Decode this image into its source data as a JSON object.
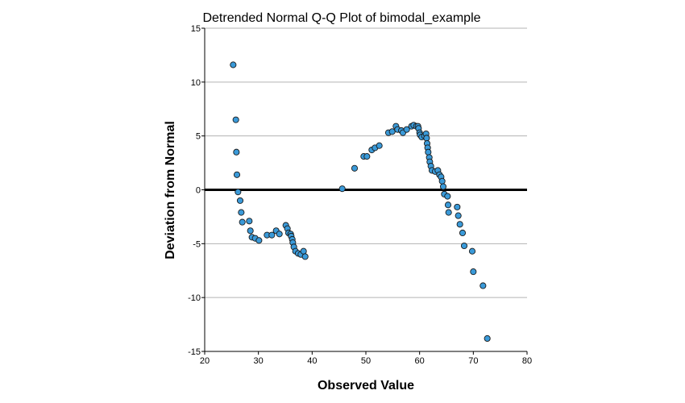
{
  "chart_data": {
    "type": "scatter",
    "title": "Detrended Normal Q-Q Plot of bimodal_example",
    "xlabel": "Observed Value",
    "ylabel": "Deviation from Normal",
    "xlim": [
      20,
      80
    ],
    "ylim": [
      -15,
      15
    ],
    "x_ticks": [
      "20",
      "30",
      "40",
      "50",
      "60",
      "70",
      "80"
    ],
    "y_ticks": [
      "15",
      "10",
      "5",
      "0",
      "-5",
      "-10",
      "-15"
    ],
    "grid": "horizontal",
    "reference_line_y": 0,
    "legend": "none",
    "colors": {
      "marker_fill": "#3a9ad9",
      "marker_edge": "#1a1a1a",
      "gridline": "#b3b3b3",
      "axis": "#000000",
      "reference_line": "#000000"
    },
    "series": [
      {
        "x": [
          25.3,
          25.8,
          25.9,
          26.0,
          26.2,
          26.6,
          26.8,
          27.0,
          28.3,
          28.5,
          28.8,
          29.4,
          30.1,
          31.6,
          32.5,
          33.3,
          33.9,
          35.1,
          35.4,
          35.6,
          36.0,
          36.1,
          36.3,
          36.4,
          36.6,
          36.9,
          37.4,
          37.9,
          38.4,
          38.7,
          45.6,
          47.9,
          49.6,
          50.2,
          51.1,
          51.7,
          52.5,
          54.2,
          54.9,
          55.6,
          55.9,
          56.6,
          56.9,
          57.6,
          58.5,
          58.9,
          59.4,
          59.7,
          59.8,
          60.0,
          60.1,
          60.4,
          60.9,
          61.2,
          61.3,
          61.4,
          61.5,
          61.6,
          61.8,
          61.9,
          62.1,
          62.3,
          62.9,
          63.4,
          63.7,
          64.0,
          64.2,
          64.4,
          64.6,
          65.2,
          65.3,
          65.4,
          67.0,
          67.2,
          67.5,
          68.0,
          68.3,
          69.8,
          70.0,
          71.8,
          72.6
        ],
        "y": [
          11.6,
          6.5,
          3.5,
          1.4,
          -0.2,
          -1.0,
          -2.1,
          -3.0,
          -2.9,
          -3.8,
          -4.4,
          -4.5,
          -4.7,
          -4.2,
          -4.2,
          -3.8,
          -4.1,
          -3.3,
          -3.6,
          -4.0,
          -4.1,
          -4.3,
          -4.6,
          -4.9,
          -5.3,
          -5.7,
          -5.9,
          -6.0,
          -5.7,
          -6.2,
          0.1,
          2.0,
          3.1,
          3.1,
          3.7,
          3.9,
          4.1,
          5.3,
          5.4,
          5.9,
          5.6,
          5.5,
          5.3,
          5.6,
          5.9,
          6.0,
          5.9,
          5.9,
          5.7,
          5.3,
          5.1,
          4.9,
          5.0,
          5.2,
          4.8,
          4.3,
          3.9,
          3.5,
          3.0,
          2.6,
          2.2,
          1.8,
          1.7,
          1.8,
          1.4,
          1.2,
          0.8,
          0.3,
          -0.4,
          -0.6,
          -1.4,
          -2.1,
          -1.6,
          -2.4,
          -3.2,
          -4.0,
          -5.2,
          -5.7,
          -7.6,
          -8.9,
          -13.8
        ]
      }
    ]
  }
}
